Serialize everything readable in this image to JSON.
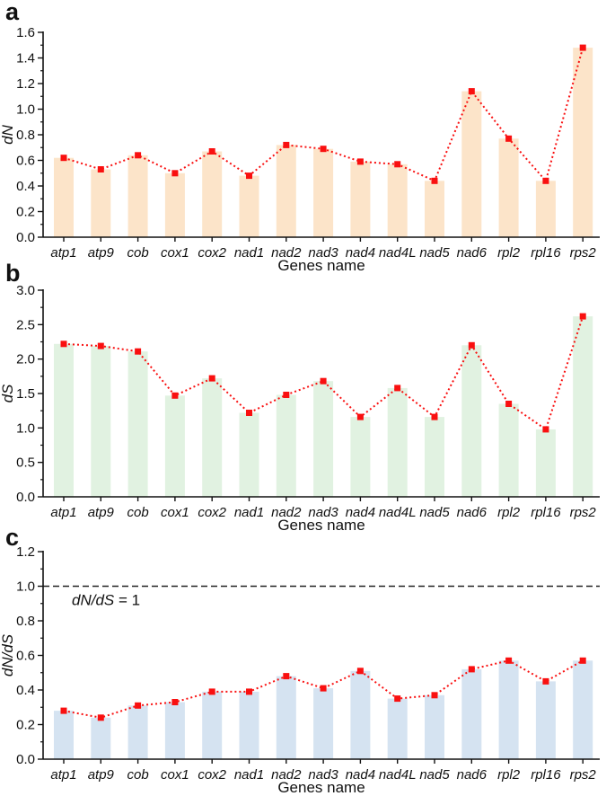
{
  "panels": [
    {
      "letter": "a"
    },
    {
      "letter": "b"
    },
    {
      "letter": "c"
    }
  ],
  "chart_data": [
    {
      "type": "bar",
      "panel": "a",
      "overlay": "dotted-line-with-square-markers",
      "categories": [
        "atp1",
        "atp9",
        "cob",
        "cox1",
        "cox2",
        "nad1",
        "nad2",
        "nad3",
        "nad4",
        "nad4L",
        "nad5",
        "nad6",
        "rpl2",
        "rpl16",
        "rps2"
      ],
      "values": [
        0.62,
        0.53,
        0.64,
        0.5,
        0.67,
        0.48,
        0.72,
        0.69,
        0.59,
        0.57,
        0.44,
        1.14,
        0.77,
        0.44,
        1.48
      ],
      "xlabel": "Genes name",
      "ylabel": "dN",
      "ylim": [
        0,
        1.6
      ],
      "ytick_step": 0.2,
      "grid": false,
      "bar_color": "#fce4c9",
      "line_color": "#f91010"
    },
    {
      "type": "bar",
      "panel": "b",
      "overlay": "dotted-line-with-square-markers",
      "categories": [
        "atp1",
        "atp9",
        "cob",
        "cox1",
        "cox2",
        "nad1",
        "nad2",
        "nad3",
        "nad4",
        "nad4L",
        "nad5",
        "nad6",
        "rpl2",
        "rpl16",
        "rps2"
      ],
      "values": [
        2.22,
        2.19,
        2.11,
        1.47,
        1.72,
        1.22,
        1.48,
        1.68,
        1.16,
        1.58,
        1.16,
        2.2,
        1.35,
        0.98,
        2.62
      ],
      "xlabel": "Genes name",
      "ylabel": "dS",
      "ylim": [
        0,
        3.0
      ],
      "ytick_step": 0.5,
      "grid": false,
      "bar_color": "#e1f2e1",
      "line_color": "#f91010"
    },
    {
      "type": "bar",
      "panel": "c",
      "overlay": "dotted-line-with-square-markers",
      "categories": [
        "atp1",
        "atp9",
        "cob",
        "cox1",
        "cox2",
        "nad1",
        "nad2",
        "nad3",
        "nad4",
        "nad4L",
        "nad5",
        "nad6",
        "rpl2",
        "rpl16",
        "rps2"
      ],
      "values": [
        0.28,
        0.24,
        0.31,
        0.33,
        0.39,
        0.39,
        0.48,
        0.41,
        0.51,
        0.35,
        0.37,
        0.52,
        0.57,
        0.45,
        0.57
      ],
      "xlabel": "Genes name",
      "ylabel": "dN/dS",
      "ylim": [
        0,
        1.2
      ],
      "ytick_step": 0.2,
      "grid": false,
      "bar_color": "#d5e3f1",
      "line_color": "#f91010",
      "reference_line": {
        "value": 1.0,
        "label_italic": "dN/dS",
        "label_rest": " = 1",
        "label_text": "dN/dS = 1",
        "color": "#222222",
        "style": "dashed"
      }
    }
  ]
}
